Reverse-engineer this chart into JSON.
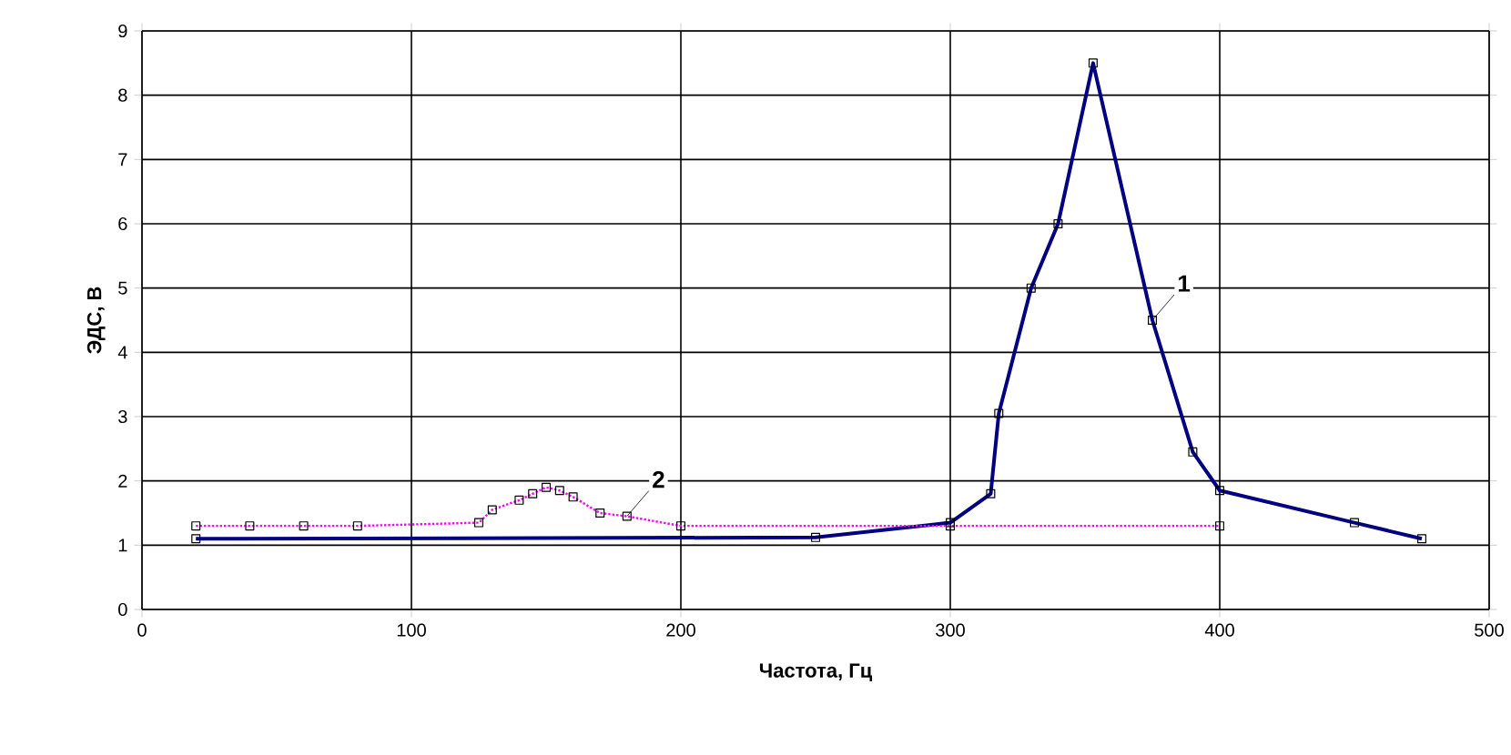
{
  "chart_data": {
    "type": "line",
    "xlabel": "Частота, Гц",
    "ylabel": "ЭДС, В",
    "xlim": [
      0,
      500
    ],
    "ylim": [
      0,
      9
    ],
    "xticks": [
      0,
      100,
      200,
      300,
      400,
      500
    ],
    "yticks": [
      0,
      1,
      2,
      3,
      4,
      5,
      6,
      7,
      8,
      9
    ],
    "grid": true,
    "marker": "square",
    "series": [
      {
        "color": "#000080",
        "line_style": "solid",
        "x": [
          20,
          250,
          300,
          315,
          318,
          330,
          340,
          353,
          375,
          390,
          400,
          450,
          475
        ],
        "values": [
          1.1,
          1.12,
          1.35,
          1.8,
          3.05,
          5.0,
          6.0,
          8.5,
          4.5,
          2.45,
          1.85,
          1.35,
          1.1
        ]
      },
      {
        "color": "#ff00ff",
        "line_style": "dotted",
        "x": [
          20,
          40,
          60,
          80,
          125,
          130,
          140,
          145,
          150,
          155,
          160,
          170,
          180,
          200,
          300,
          400
        ],
        "values": [
          1.3,
          1.3,
          1.3,
          1.3,
          1.35,
          1.55,
          1.7,
          1.8,
          1.9,
          1.85,
          1.75,
          1.5,
          1.45,
          1.3,
          1.3,
          1.3
        ]
      }
    ],
    "annotations": [
      {
        "text": "1",
        "x": 375,
        "y": 4.5
      },
      {
        "text": "2",
        "x": 180,
        "y": 1.45
      }
    ]
  }
}
